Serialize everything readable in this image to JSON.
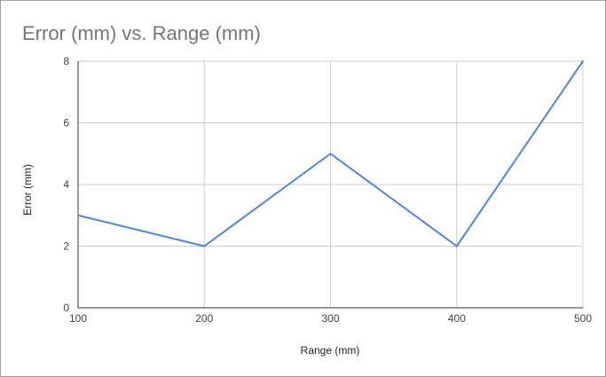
{
  "chart_data": {
    "type": "line",
    "title": "Error (mm) vs. Range (mm)",
    "xlabel": "Range (mm)",
    "ylabel": "Error (mm)",
    "x": [
      100,
      200,
      300,
      400,
      500
    ],
    "series": [
      {
        "values": [
          3,
          2,
          5,
          2,
          8
        ],
        "color": "#4a86e8"
      }
    ],
    "xlim": [
      100,
      500
    ],
    "ylim": [
      0,
      8
    ],
    "xticks": [
      100,
      200,
      300,
      400,
      500
    ],
    "yticks": [
      0,
      2,
      4,
      6,
      8
    ],
    "grid": true,
    "legend": "none"
  }
}
